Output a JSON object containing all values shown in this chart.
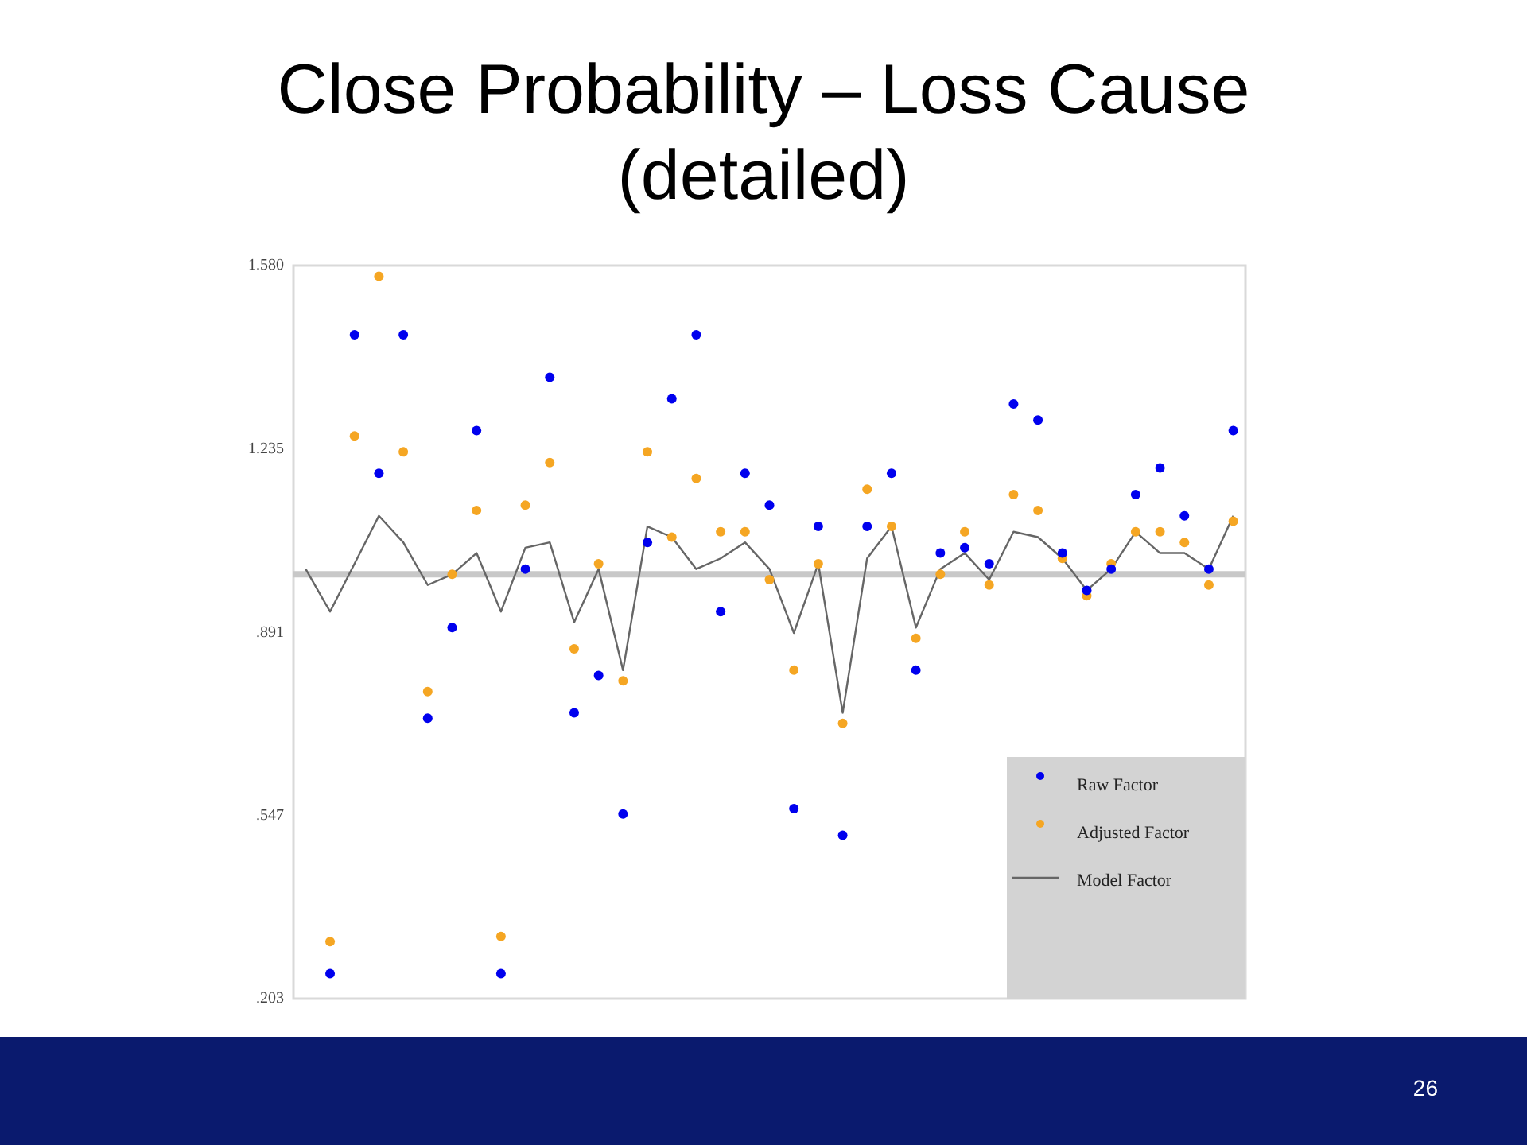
{
  "chart_data": {
    "type": "scatter",
    "title": "Close Probability – Loss Cause (detailed)",
    "categories": [
      null,
      null,
      null,
      null,
      null,
      null,
      null,
      null,
      null,
      null,
      null,
      null,
      null,
      null,
      null,
      null,
      null,
      null,
      null,
      null,
      null,
      null,
      null,
      null,
      null,
      null,
      null,
      null,
      null,
      null,
      null,
      null,
      null,
      null,
      null,
      null,
      null,
      null,
      null
    ],
    "series": [
      {
        "name": "Raw Factor",
        "marker": "circle",
        "color": "#0000ee",
        "values": [
          null,
          0.25,
          1.45,
          1.19,
          1.45,
          0.73,
          0.9,
          1.27,
          0.25,
          1.01,
          1.37,
          0.74,
          0.81,
          0.55,
          1.06,
          1.33,
          1.45,
          0.93,
          1.19,
          1.13,
          0.56,
          1.09,
          0.51,
          1.09,
          1.19,
          0.82,
          1.04,
          1.05,
          1.02,
          1.32,
          1.29,
          1.04,
          0.97,
          1.01,
          1.15,
          1.2,
          1.11,
          1.01,
          1.27
        ]
      },
      {
        "name": "Adjusted Factor",
        "marker": "circle",
        "color": "#f5a623",
        "values": [
          null,
          0.31,
          1.26,
          1.56,
          1.23,
          0.78,
          1.0,
          1.12,
          0.32,
          1.13,
          1.21,
          0.86,
          1.02,
          0.8,
          1.23,
          1.07,
          1.18,
          1.08,
          1.08,
          0.99,
          0.82,
          1.02,
          0.72,
          1.16,
          1.09,
          0.88,
          1.0,
          1.08,
          0.98,
          1.15,
          1.12,
          1.03,
          0.96,
          1.02,
          1.08,
          1.08,
          1.06,
          0.98,
          1.1
        ]
      },
      {
        "name": "Model Factor",
        "type": "line",
        "marker": "none",
        "color": "#666666",
        "values": [
          1.01,
          0.93,
          1.02,
          1.11,
          1.06,
          0.98,
          1.0,
          1.04,
          0.93,
          1.05,
          1.06,
          0.91,
          1.01,
          0.82,
          1.09,
          1.07,
          1.01,
          1.03,
          1.06,
          1.01,
          0.89,
          1.02,
          0.74,
          1.03,
          1.09,
          0.9,
          1.01,
          1.04,
          0.99,
          1.08,
          1.07,
          1.03,
          0.97,
          1.01,
          1.08,
          1.04,
          1.04,
          1.01,
          1.11
        ]
      }
    ],
    "ylim": [
      0.203,
      1.58
    ],
    "yticks": [
      {
        "value": 0.203,
        "label": ".203"
      },
      {
        "value": 0.547,
        "label": ".547"
      },
      {
        "value": 0.891,
        "label": ".891"
      },
      {
        "value": 1.235,
        "label": "1.235"
      },
      {
        "value": 1.58,
        "label": "1.580"
      }
    ],
    "ref_lines": [
      {
        "axis": "y",
        "value": 1.0,
        "color": "#c8c8c8"
      }
    ],
    "grid": false,
    "legend": "bottom right",
    "tick_labels": "y",
    "annotations": [
      "26"
    ]
  }
}
